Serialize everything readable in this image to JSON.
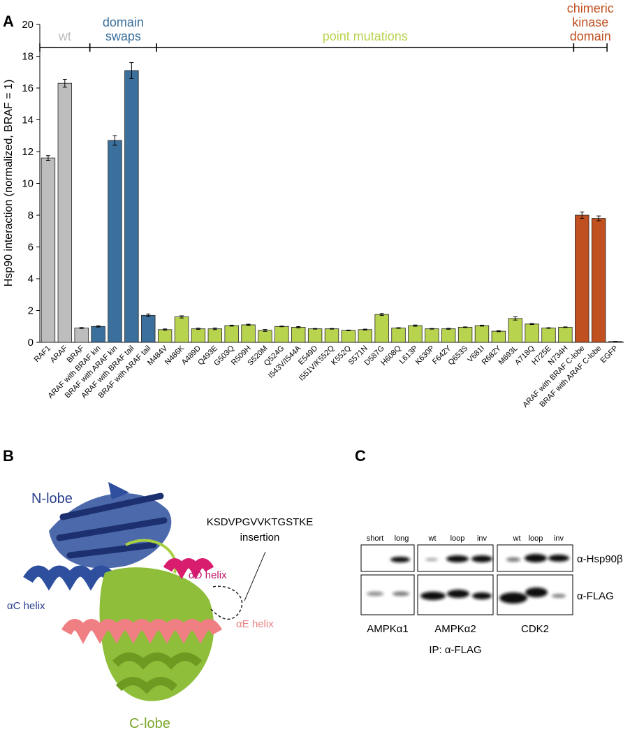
{
  "panel_labels": [
    "A",
    "B",
    "C"
  ],
  "chart_data": {
    "type": "bar",
    "ylabel": "Hsp90 interaction (normalized, BRAF = 1)",
    "ylim": [
      0,
      20
    ],
    "yticks": [
      0,
      2,
      4,
      6,
      8,
      10,
      12,
      14,
      16,
      18,
      20
    ],
    "categories": [
      "RAF1",
      "ARAF",
      "BRAF",
      "ARAF with BRAF kin",
      "BRAF with ARAF kin",
      "ARAF with BRAF tail",
      "BRAF with ARAF tail",
      "M484V",
      "N486K",
      "A489D",
      "Q493E",
      "G503Q",
      "R509H",
      "S520M",
      "Q524G",
      "I543V/I544A",
      "E549D",
      "I551V/K552Q",
      "K552Q",
      "S571N",
      "D587G",
      "H608Q",
      "L613P",
      "K630P",
      "F642Y",
      "Q653S",
      "V681I",
      "R682Y",
      "M693L",
      "A718Q",
      "H725E",
      "N734H",
      "ARAF with BRAF C-lobe",
      "BRAF with ARAF C-lobe",
      "EGFP"
    ],
    "series": [
      {
        "name": "wt",
        "color": "#bdbdbd",
        "values": [
          11.6,
          16.3,
          0.9,
          null,
          null,
          null,
          null,
          null,
          null,
          null,
          null,
          null,
          null,
          null,
          null,
          null,
          null,
          null,
          null,
          null,
          null,
          null,
          null,
          null,
          null,
          null,
          null,
          null,
          null,
          null,
          null,
          null,
          null,
          null,
          null
        ],
        "errors": [
          0.15,
          0.25,
          0.03,
          null,
          null,
          null,
          null,
          null,
          null,
          null,
          null,
          null,
          null,
          null,
          null,
          null,
          null,
          null,
          null,
          null,
          null,
          null,
          null,
          null,
          null,
          null,
          null,
          null,
          null,
          null,
          null,
          null,
          null,
          null,
          null
        ]
      },
      {
        "name": "domain swaps",
        "color": "#3b6f9c",
        "values": [
          null,
          null,
          null,
          1.0,
          12.7,
          17.1,
          1.7,
          null,
          null,
          null,
          null,
          null,
          null,
          null,
          null,
          null,
          null,
          null,
          null,
          null,
          null,
          null,
          null,
          null,
          null,
          null,
          null,
          null,
          null,
          null,
          null,
          null,
          null,
          null,
          null
        ],
        "errors": [
          null,
          null,
          null,
          0.04,
          0.3,
          0.5,
          0.08,
          null,
          null,
          null,
          null,
          null,
          null,
          null,
          null,
          null,
          null,
          null,
          null,
          null,
          null,
          null,
          null,
          null,
          null,
          null,
          null,
          null,
          null,
          null,
          null,
          null,
          null,
          null,
          null
        ]
      },
      {
        "name": "point mutations",
        "color": "#b8d44e",
        "values": [
          null,
          null,
          null,
          null,
          null,
          null,
          null,
          0.8,
          1.6,
          0.85,
          0.85,
          1.05,
          1.1,
          0.75,
          1.0,
          0.95,
          0.85,
          0.85,
          0.75,
          0.8,
          1.75,
          0.9,
          1.05,
          0.85,
          0.85,
          0.95,
          1.05,
          0.7,
          1.5,
          1.15,
          0.9,
          0.95,
          null,
          null,
          null
        ],
        "errors": [
          null,
          null,
          null,
          null,
          null,
          null,
          null,
          0.04,
          0.07,
          0.04,
          0.05,
          0.03,
          0.04,
          0.06,
          0.02,
          0.04,
          0.02,
          0.02,
          0.02,
          0.03,
          0.06,
          0.02,
          0.04,
          0.02,
          0.03,
          0.02,
          0.03,
          0.03,
          0.1,
          0.03,
          0.02,
          0.02,
          null,
          null,
          null
        ]
      },
      {
        "name": "chimeric kinase domain",
        "color": "#c0501f",
        "values": [
          null,
          null,
          null,
          null,
          null,
          null,
          null,
          null,
          null,
          null,
          null,
          null,
          null,
          null,
          null,
          null,
          null,
          null,
          null,
          null,
          null,
          null,
          null,
          null,
          null,
          null,
          null,
          null,
          null,
          null,
          null,
          null,
          8.0,
          7.8,
          null
        ],
        "errors": [
          null,
          null,
          null,
          null,
          null,
          null,
          null,
          null,
          null,
          null,
          null,
          null,
          null,
          null,
          null,
          null,
          null,
          null,
          null,
          null,
          null,
          null,
          null,
          null,
          null,
          null,
          null,
          null,
          null,
          null,
          null,
          null,
          0.2,
          0.15,
          null
        ]
      },
      {
        "color": "#333333",
        "values": [
          null,
          null,
          null,
          null,
          null,
          null,
          null,
          null,
          null,
          null,
          null,
          null,
          null,
          null,
          null,
          null,
          null,
          null,
          null,
          null,
          null,
          null,
          null,
          null,
          null,
          null,
          null,
          null,
          null,
          null,
          null,
          null,
          null,
          null,
          0.05
        ],
        "errors": [
          null,
          null,
          null,
          null,
          null,
          null,
          null,
          null,
          null,
          null,
          null,
          null,
          null,
          null,
          null,
          null,
          null,
          null,
          null,
          null,
          null,
          null,
          null,
          null,
          null,
          null,
          null,
          null,
          null,
          null,
          null,
          null,
          null,
          null,
          0.01
        ]
      }
    ]
  },
  "structure": {
    "n_lobe": "N-lobe",
    "c_lobe": "C-lobe",
    "ac_helix": "αC helix",
    "ad_helix": "αD helix",
    "ae_helix": "αE helix",
    "insertion": [
      "KSDVPGVVKTGSTKE",
      "insertion"
    ]
  },
  "blot": {
    "lanes": [
      [
        "short",
        "long"
      ],
      [
        "wt",
        "loop",
        "inv"
      ],
      [
        "wt",
        "loop",
        "inv"
      ]
    ],
    "antibodies": [
      "α-Hsp90β",
      "α-FLAG"
    ],
    "proteins": [
      "AMPKα1",
      "AMPKα2",
      "CDK2"
    ],
    "ip": "IP: α-FLAG"
  }
}
